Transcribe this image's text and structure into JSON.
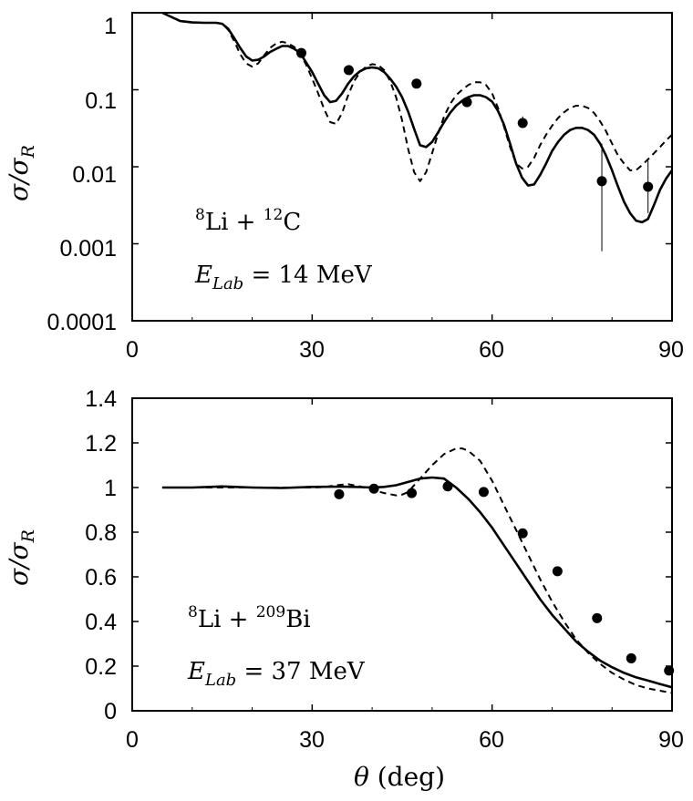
{
  "chart_data": [
    {
      "type": "line",
      "ylabel_main": "σ/σ",
      "ylabel_sub": "R",
      "xlabel": "",
      "yscale": "log",
      "xlim": [
        0,
        90
      ],
      "ylim": [
        0.0001,
        1
      ],
      "xticks": [
        "0",
        "30",
        "60",
        "90"
      ],
      "xtick_values": [
        0,
        30,
        60,
        90
      ],
      "yticks": [
        "0.0001",
        "0.001",
        "0.01",
        "0.1",
        "1"
      ],
      "ytick_values": [
        0.0001,
        0.001,
        0.01,
        0.1,
        1
      ],
      "annotation_line1": {
        "a": "8",
        "b": "Li + ",
        "c": "12",
        "d": "C"
      },
      "annotation_line2": {
        "e": "E",
        "sub": "Lab",
        "rest": " = 14 MeV"
      },
      "series": [
        {
          "name": "solid",
          "style": "solid",
          "x": [
            5,
            8,
            10,
            12,
            14,
            15,
            16,
            17,
            18,
            19,
            20,
            21,
            22,
            23,
            24,
            25,
            26,
            27,
            28,
            30,
            31,
            32,
            33,
            34,
            35,
            36,
            37,
            38,
            39,
            40,
            41,
            42,
            43,
            44,
            45,
            46,
            47,
            48,
            49,
            50,
            51,
            52,
            53,
            54,
            55,
            56,
            57,
            58,
            59,
            60,
            61,
            62,
            63,
            64,
            65,
            66,
            67,
            68,
            69,
            70,
            71,
            72,
            73,
            74,
            75,
            76,
            77,
            78,
            79,
            80,
            81,
            82,
            83,
            84,
            85,
            86,
            87,
            88,
            89,
            90
          ],
          "y": [
            1.0,
            0.78,
            0.75,
            0.74,
            0.74,
            0.72,
            0.62,
            0.47,
            0.35,
            0.27,
            0.24,
            0.245,
            0.27,
            0.31,
            0.34,
            0.37,
            0.37,
            0.34,
            0.3,
            0.17,
            0.12,
            0.085,
            0.069,
            0.072,
            0.09,
            0.12,
            0.15,
            0.175,
            0.19,
            0.195,
            0.19,
            0.17,
            0.14,
            0.11,
            0.08,
            0.052,
            0.031,
            0.019,
            0.018,
            0.021,
            0.028,
            0.038,
            0.05,
            0.062,
            0.072,
            0.08,
            0.085,
            0.085,
            0.08,
            0.07,
            0.053,
            0.035,
            0.02,
            0.011,
            0.0072,
            0.0057,
            0.0059,
            0.0078,
            0.011,
            0.016,
            0.021,
            0.026,
            0.03,
            0.032,
            0.032,
            0.03,
            0.026,
            0.02,
            0.014,
            0.009,
            0.0055,
            0.0035,
            0.0025,
            0.002,
            0.0019,
            0.0021,
            0.0032,
            0.005,
            0.007,
            0.009
          ]
        },
        {
          "name": "dashed",
          "style": "dashed",
          "x": [
            5,
            8,
            10,
            12,
            14,
            15,
            16,
            17,
            18,
            19,
            20,
            21,
            22,
            23,
            24,
            25,
            26,
            27,
            28,
            29,
            30,
            31,
            32,
            33,
            34,
            35,
            36,
            37,
            38,
            39,
            40,
            41,
            42,
            43,
            44,
            45,
            46,
            47,
            48,
            49,
            50,
            51,
            52,
            53,
            54,
            55,
            56,
            57,
            58,
            59,
            60,
            61,
            62,
            63,
            64,
            65,
            66,
            67,
            68,
            69,
            70,
            71,
            72,
            73,
            74,
            75,
            76,
            77,
            78,
            79,
            80,
            81,
            82,
            83,
            84,
            85,
            86,
            87,
            88,
            89,
            90
          ],
          "y": [
            1.0,
            0.78,
            0.75,
            0.74,
            0.74,
            0.72,
            0.6,
            0.43,
            0.29,
            0.22,
            0.2,
            0.22,
            0.28,
            0.35,
            0.4,
            0.42,
            0.4,
            0.36,
            0.3,
            0.21,
            0.14,
            0.09,
            0.056,
            0.038,
            0.036,
            0.05,
            0.085,
            0.13,
            0.17,
            0.2,
            0.215,
            0.21,
            0.18,
            0.13,
            0.08,
            0.04,
            0.017,
            0.0085,
            0.0065,
            0.0085,
            0.015,
            0.027,
            0.045,
            0.065,
            0.085,
            0.1,
            0.115,
            0.125,
            0.125,
            0.115,
            0.09,
            0.058,
            0.033,
            0.018,
            0.011,
            0.0095,
            0.01,
            0.013,
            0.019,
            0.026,
            0.034,
            0.043,
            0.051,
            0.058,
            0.062,
            0.062,
            0.058,
            0.05,
            0.039,
            0.029,
            0.02,
            0.014,
            0.011,
            0.009,
            0.009,
            0.0105,
            0.0125,
            0.015,
            0.018,
            0.022,
            0.026
          ]
        },
        {
          "name": "data",
          "style": "points",
          "x": [
            28.2,
            36.1,
            47.4,
            55.8,
            65.1,
            78.3,
            86.0
          ],
          "y": [
            0.3,
            0.18,
            0.12,
            0.069,
            0.037,
            0.0065,
            0.0055
          ],
          "err_low": [
            null,
            null,
            null,
            null,
            0.032,
            0.0008,
            0.0025
          ],
          "err_high": [
            null,
            null,
            null,
            null,
            0.045,
            0.02,
            0.012
          ]
        }
      ]
    },
    {
      "type": "line",
      "ylabel_main": "σ/σ",
      "ylabel_sub": "R",
      "xlabel_theta": "θ",
      "xlabel_rest": " (deg)",
      "yscale": "linear",
      "xlim": [
        0,
        90
      ],
      "ylim": [
        0,
        1.4
      ],
      "xticks": [
        "0",
        "30",
        "60",
        "90"
      ],
      "xtick_values": [
        0,
        30,
        60,
        90
      ],
      "yticks": [
        "0",
        "0.2",
        "0.4",
        "0.6",
        "0.8",
        "1",
        "1.2",
        "1.4"
      ],
      "ytick_values": [
        0,
        0.2,
        0.4,
        0.6,
        0.8,
        1.0,
        1.2,
        1.4
      ],
      "annotation_line1": {
        "a": "8",
        "b": "Li + ",
        "c": "209",
        "d": "Bi"
      },
      "annotation_line2": {
        "e": "E",
        "sub": "Lab",
        "rest": " = 37 MeV"
      },
      "series": [
        {
          "name": "solid",
          "style": "solid",
          "x": [
            5,
            10,
            15,
            20,
            25,
            30,
            35,
            38,
            40,
            42,
            44,
            46,
            48,
            50,
            52,
            54,
            56,
            58,
            60,
            62,
            64,
            66,
            68,
            70,
            72,
            74,
            76,
            78,
            80,
            82,
            84,
            86,
            88,
            90
          ],
          "y": [
            1.0,
            1.0,
            1.005,
            1.0,
            0.998,
            1.003,
            1.004,
            1.002,
            1.0,
            1.003,
            1.01,
            1.025,
            1.04,
            1.045,
            1.04,
            1.0,
            0.95,
            0.89,
            0.82,
            0.74,
            0.66,
            0.58,
            0.5,
            0.43,
            0.37,
            0.31,
            0.265,
            0.225,
            0.195,
            0.17,
            0.15,
            0.135,
            0.12,
            0.105
          ]
        },
        {
          "name": "dashed",
          "style": "dashed",
          "x": [
            5,
            10,
            15,
            20,
            25,
            30,
            32,
            34,
            36,
            38,
            40,
            42,
            44,
            45,
            46,
            48,
            50,
            52,
            54,
            55,
            56,
            58,
            60,
            62,
            64,
            66,
            68,
            70,
            72,
            74,
            76,
            78,
            80,
            82,
            84,
            86,
            88,
            90
          ],
          "y": [
            1.0,
            1.0,
            1.0,
            1.0,
            1.0,
            1.0,
            1.002,
            1.01,
            1.015,
            1.005,
            0.99,
            0.975,
            0.965,
            0.968,
            0.98,
            1.04,
            1.1,
            1.15,
            1.175,
            1.175,
            1.165,
            1.12,
            1.03,
            0.92,
            0.81,
            0.7,
            0.59,
            0.49,
            0.4,
            0.32,
            0.26,
            0.21,
            0.17,
            0.14,
            0.115,
            0.1,
            0.09,
            0.08
          ]
        },
        {
          "name": "data",
          "style": "points",
          "x": [
            34.5,
            40.3,
            46.6,
            52.6,
            58.6,
            65.1,
            70.9,
            77.5,
            83.2,
            89.5
          ],
          "y": [
            0.97,
            0.995,
            0.975,
            1.005,
            0.98,
            0.795,
            0.625,
            0.415,
            0.235,
            0.18
          ]
        }
      ]
    }
  ]
}
